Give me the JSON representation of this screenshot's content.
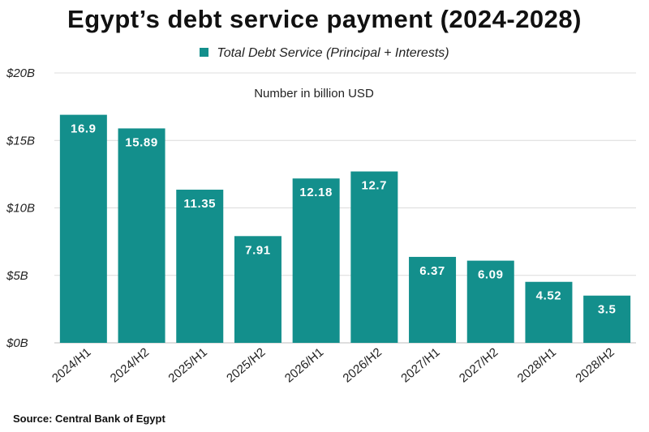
{
  "chart_data": {
    "type": "bar",
    "title": "Egypt’s debt service payment (2024-2028)",
    "subtitle": "Number in billion USD",
    "source": "Source: Central Bank of Egypt",
    "legend": {
      "label": "Total Debt Service (Principal + Interests)",
      "position": "top-center"
    },
    "color": "#138f8c",
    "categories": [
      "2024/H1",
      "2024/H2",
      "2025/H1",
      "2025/H2",
      "2026/H1",
      "2026/H2",
      "2027/H1",
      "2027/H2",
      "2028/H1",
      "2028/H2"
    ],
    "values": [
      16.9,
      15.89,
      11.35,
      7.91,
      12.18,
      12.7,
      6.37,
      6.09,
      4.52,
      3.5
    ],
    "value_labels": [
      "16.9",
      "15.89",
      "11.35",
      "7.91",
      "12.18",
      "12.7",
      "6.37",
      "6.09",
      "4.52",
      "3.5"
    ],
    "ylim": [
      0,
      20
    ],
    "yticks": [
      0,
      5,
      10,
      15,
      20
    ],
    "ytick_labels": [
      "$0B",
      "$5B",
      "$10B",
      "$15B",
      "$20B"
    ],
    "grid": true,
    "xlabel": "",
    "ylabel": ""
  }
}
